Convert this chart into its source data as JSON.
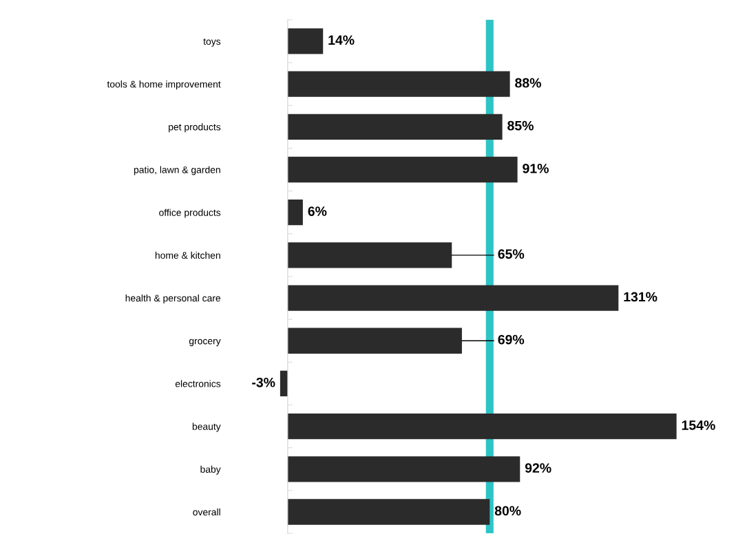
{
  "chart_data": {
    "type": "bar",
    "orientation": "horizontal",
    "categories": [
      "toys",
      "tools & home improvement",
      "pet products",
      "patio, lawn & garden",
      "office products",
      "home & kitchen",
      "health & personal care",
      "grocery",
      "electronics",
      "beauty",
      "baby",
      "overall"
    ],
    "values": [
      14,
      88,
      85,
      91,
      6,
      65,
      131,
      69,
      -3,
      154,
      92,
      80
    ],
    "value_labels": [
      "14%",
      "88%",
      "85%",
      "91%",
      "6%",
      "65%",
      "131%",
      "69%",
      "-3%",
      "154%",
      "92%",
      "80%"
    ],
    "color": "#2b2b2b",
    "ref_lines": [
      {
        "axis": "x",
        "value": 80,
        "color": "#2ec4c6"
      }
    ],
    "grid": false
  }
}
